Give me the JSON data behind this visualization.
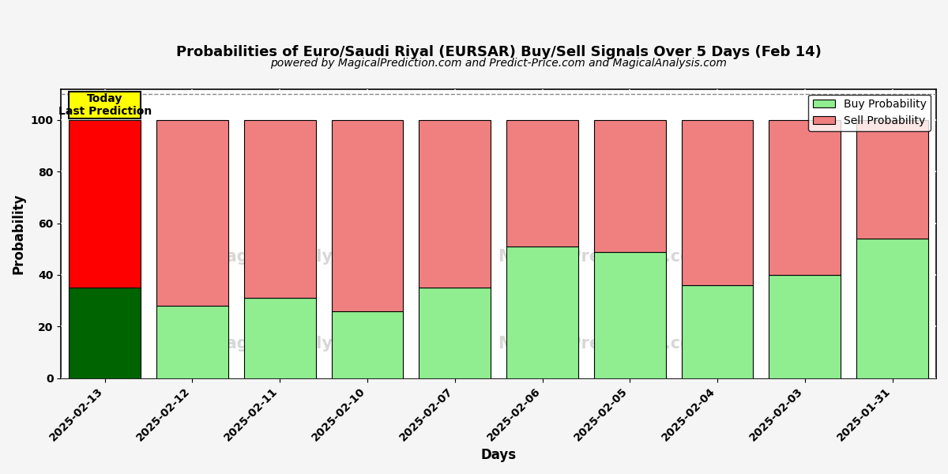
{
  "title": "Probabilities of Euro/Saudi Riyal (EURSAR) Buy/Sell Signals Over 5 Days (Feb 14)",
  "subtitle": "powered by MagicalPrediction.com and Predict-Price.com and MagicalAnalysis.com",
  "xlabel": "Days",
  "ylabel": "Probability",
  "dates": [
    "2025-02-13",
    "2025-02-12",
    "2025-02-11",
    "2025-02-10",
    "2025-02-07",
    "2025-02-06",
    "2025-02-05",
    "2025-02-04",
    "2025-02-03",
    "2025-01-31"
  ],
  "buy_values": [
    35,
    28,
    31,
    26,
    35,
    51,
    49,
    36,
    40,
    54
  ],
  "sell_values": [
    65,
    72,
    69,
    74,
    65,
    49,
    51,
    64,
    60,
    46
  ],
  "today_buy_color": "#006400",
  "today_sell_color": "#ff0000",
  "buy_color": "#90ee90",
  "sell_color": "#f08080",
  "today_box_color": "#ffff00",
  "today_label": "Today\nLast Prediction",
  "ylim": [
    0,
    112
  ],
  "yticks": [
    0,
    20,
    40,
    60,
    80,
    100
  ],
  "dashed_line_y": 110,
  "legend_buy_label": "Buy Probability",
  "legend_sell_label": "Sell Probability",
  "bar_edge_color": "#000000",
  "bar_linewidth": 0.8,
  "grid_color": "#ffffff",
  "bg_color": "#ffffff"
}
